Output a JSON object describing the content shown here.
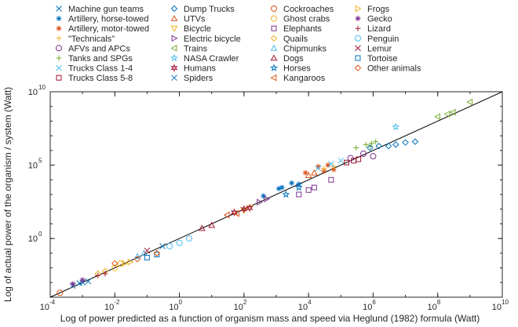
{
  "chart_data": {
    "type": "scatter",
    "xlabel": "Log of power predicted as a function of organism mass and speed via Heglund (1982) formula (Watt)",
    "ylabel": "Log of actual power of the organism / system (Watt)",
    "xscale": "log",
    "yscale": "log",
    "xlim": [
      0.0001,
      10000000000
    ],
    "ylim": [
      0.0001,
      10000000000
    ],
    "x_ticks": [
      {
        "v": 0.0001,
        "base": "10",
        "exp": "-4"
      },
      {
        "v": 0.01,
        "base": "10",
        "exp": "-2"
      },
      {
        "v": 1,
        "base": "10",
        "exp": "0"
      },
      {
        "v": 100,
        "base": "10",
        "exp": "2"
      },
      {
        "v": 10000,
        "base": "10",
        "exp": "4"
      },
      {
        "v": 1000000,
        "base": "10",
        "exp": "6"
      },
      {
        "v": 100000000,
        "base": "10",
        "exp": "8"
      },
      {
        "v": 10000000000,
        "base": "10",
        "exp": "10"
      }
    ],
    "y_ticks": [
      {
        "v": 1,
        "base": "10",
        "exp": "0"
      },
      {
        "v": 100000,
        "base": "10",
        "exp": "5"
      },
      {
        "v": 10000000000,
        "base": "10",
        "exp": "10"
      }
    ],
    "grid": false,
    "legend_position": "top",
    "reference_line": {
      "style": "solid",
      "color": "#000000",
      "from": [
        0.0001,
        0.0001
      ],
      "to": [
        10000000000,
        10000000000
      ]
    },
    "series": [
      {
        "name": "Machine gun teams",
        "marker": "x",
        "color": "#0072bd",
        "points": [
          [
            0.0005,
            0.0006
          ],
          [
            0.0008,
            0.0009
          ],
          [
            0.3,
            0.3
          ]
        ]
      },
      {
        "name": "Artillery, horse-towed",
        "marker": "asterisk",
        "color": "#0072bd",
        "points": [
          [
            400,
            800
          ],
          [
            1200,
            2500
          ],
          [
            3000,
            6000
          ],
          [
            1500,
            3000
          ],
          [
            5000,
            5000
          ]
        ]
      },
      {
        "name": "Artillery, motor-towed",
        "marker": "asterisk",
        "color": "#d95319",
        "points": [
          [
            20000,
            80000
          ],
          [
            40000,
            100000
          ],
          [
            60000,
            50000
          ],
          [
            30000,
            40000
          ],
          [
            8000,
            30000
          ]
        ]
      },
      {
        "name": "\"Technicals\"",
        "marker": "plus",
        "color": "#edb120",
        "points": [
          [
            30000,
            60000
          ],
          [
            60000,
            80000
          ]
        ]
      },
      {
        "name": "AFVs and APCs",
        "marker": "circle",
        "color": "#7e2f8e",
        "points": [
          [
            500000,
            600000
          ],
          [
            200000,
            300000
          ],
          [
            1000000,
            400000
          ]
        ]
      },
      {
        "name": "Tanks and SPGs",
        "marker": "plus",
        "color": "#77ac30",
        "points": [
          [
            300000,
            1500000
          ],
          [
            600000,
            2500000
          ],
          [
            900000,
            3000000
          ],
          [
            1200000,
            4000000
          ],
          [
            800000,
            2000000
          ]
        ]
      },
      {
        "name": "Trucks Class 1-4",
        "marker": "x",
        "color": "#4dbeee",
        "points": [
          [
            20000,
            60000
          ],
          [
            50000,
            120000
          ],
          [
            100000,
            200000
          ]
        ]
      },
      {
        "name": "Trucks Class 5-8",
        "marker": "square",
        "color": "#a2142f",
        "points": [
          [
            150000,
            150000
          ],
          [
            250000,
            200000
          ],
          [
            350000,
            250000
          ]
        ]
      },
      {
        "name": "Dump Trucks",
        "marker": "diamond",
        "color": "#0072bd",
        "points": [
          [
            5000000,
            2500000
          ],
          [
            10000000,
            3500000
          ],
          [
            20000000,
            4000000
          ],
          [
            3000000,
            2000000
          ],
          [
            1500000,
            2000000
          ],
          [
            800000,
            1500000
          ]
        ]
      },
      {
        "name": "UTVs",
        "marker": "triangle-up",
        "color": "#d95319",
        "points": [
          [
            10000,
            20000
          ],
          [
            15000,
            30000
          ]
        ]
      },
      {
        "name": "Bicycle",
        "marker": "triangle-down",
        "color": "#edb120",
        "points": [
          [
            100,
            80
          ],
          [
            150,
            120
          ]
        ]
      },
      {
        "name": "Electric bicycle",
        "marker": "triangle-right",
        "color": "#7e2f8e",
        "points": [
          [
            300,
            300
          ],
          [
            500,
            500
          ]
        ]
      },
      {
        "name": "Trains",
        "marker": "triangle-left",
        "color": "#77ac30",
        "points": [
          [
            1000000000,
            2000000000
          ],
          [
            200000000,
            300000000
          ],
          [
            300000000,
            400000000
          ],
          [
            100000000,
            200000000
          ]
        ]
      },
      {
        "name": "NASA Crawler",
        "marker": "pentagram",
        "color": "#4dbeee",
        "points": [
          [
            5000000,
            40000000
          ]
        ]
      },
      {
        "name": "Humans",
        "marker": "hexagram",
        "color": "#a2142f",
        "points": [
          [
            50,
            60
          ],
          [
            100,
            100
          ],
          [
            150,
            120
          ]
        ]
      },
      {
        "name": "Spiders",
        "marker": "x",
        "color": "#0072bd",
        "points": [
          [
            0.001,
            0.001
          ],
          [
            0.0015,
            0.0012
          ]
        ]
      },
      {
        "name": "Cockroaches",
        "marker": "circle",
        "color": "#d95319",
        "points": [
          [
            0.0002,
            0.0002
          ]
        ]
      },
      {
        "name": "Ghost crabs",
        "marker": "circle",
        "color": "#edb120",
        "points": [
          [
            0.01,
            0.01
          ],
          [
            0.015,
            0.02
          ]
        ]
      },
      {
        "name": "Elephants",
        "marker": "square",
        "color": "#7e2f8e",
        "points": [
          [
            10000,
            2000
          ],
          [
            15000,
            3000
          ],
          [
            5000,
            1000
          ],
          [
            50000,
            10000
          ]
        ]
      },
      {
        "name": "Quails",
        "marker": "diamond",
        "color": "#edb120",
        "points": [
          [
            0.003,
            0.004
          ],
          [
            0.005,
            0.006
          ]
        ]
      },
      {
        "name": "Chipmunks",
        "marker": "triangle-up",
        "color": "#4dbeee",
        "points": [
          [
            0.05,
            0.06
          ],
          [
            0.08,
            0.1
          ]
        ]
      },
      {
        "name": "Dogs",
        "marker": "triangle-up",
        "color": "#a2142f",
        "points": [
          [
            5,
            5
          ],
          [
            10,
            8
          ]
        ]
      },
      {
        "name": "Horses",
        "marker": "pentagram",
        "color": "#0072bd",
        "points": [
          [
            2000,
            1000
          ],
          [
            5000,
            3000
          ]
        ]
      },
      {
        "name": "Kangaroos",
        "marker": "triangle-left",
        "color": "#d95319",
        "points": [
          [
            30,
            40
          ],
          [
            60,
            50
          ]
        ]
      },
      {
        "name": "Frogs",
        "marker": "triangle-right",
        "color": "#edb120",
        "points": [
          [
            0.02,
            0.02
          ],
          [
            0.03,
            0.025
          ]
        ]
      },
      {
        "name": "Gecko",
        "marker": "asterisk",
        "color": "#7e2f8e",
        "points": [
          [
            0.0005,
            0.0008
          ],
          [
            0.001,
            0.0015
          ]
        ]
      },
      {
        "name": "Lizard",
        "marker": "plus",
        "color": "#a2142f",
        "points": [
          [
            0.003,
            0.003
          ],
          [
            0.005,
            0.004
          ]
        ]
      },
      {
        "name": "Penguin",
        "marker": "circle",
        "color": "#4dbeee",
        "points": [
          [
            0.5,
            0.3
          ],
          [
            1,
            0.5
          ],
          [
            2,
            1
          ]
        ]
      },
      {
        "name": "Lemur",
        "marker": "x",
        "color": "#a2142f",
        "points": [
          [
            0.1,
            0.15
          ]
        ]
      },
      {
        "name": "Tortoise",
        "marker": "square",
        "color": "#0072bd",
        "points": [
          [
            0.1,
            0.05
          ],
          [
            0.2,
            0.08
          ]
        ]
      },
      {
        "name": "Other animals",
        "marker": "diamond",
        "color": "#d95319",
        "points": [
          [
            0.01,
            0.02
          ],
          [
            0.05,
            0.04
          ],
          [
            0.2,
            0.1
          ]
        ]
      }
    ]
  }
}
